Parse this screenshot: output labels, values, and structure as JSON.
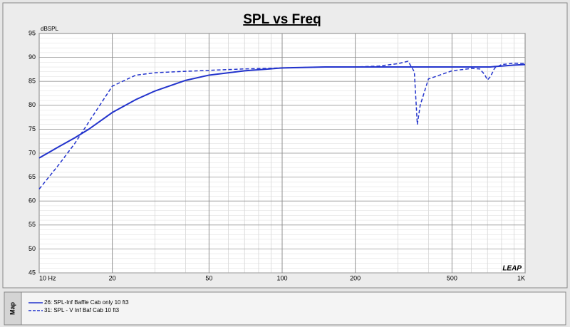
{
  "chart_data": {
    "type": "line",
    "title": "SPL vs Freq",
    "y_label": "dBSPL",
    "logo": "LEAP",
    "panel_label": "Map",
    "x_log": true,
    "grid": true,
    "minor_grid": true,
    "xlim": [
      10,
      1000
    ],
    "ylim": [
      45,
      95
    ],
    "xticks": [
      {
        "value": 10,
        "label": "10 Hz"
      },
      20,
      50,
      100,
      200,
      500,
      {
        "value": 1000,
        "label": "1K"
      }
    ],
    "yticks": [
      45,
      50,
      55,
      60,
      65,
      70,
      75,
      80,
      85,
      90,
      95
    ],
    "x": [
      10,
      12,
      14,
      16,
      20,
      25,
      30,
      40,
      50,
      70,
      100,
      150,
      200,
      250,
      300,
      330,
      350,
      360,
      370,
      400,
      500,
      600,
      650,
      680,
      700,
      720,
      750,
      800,
      900,
      1000
    ],
    "series": [
      {
        "name": "26: SPL-Inf Baffle Cab only 10 ft3",
        "color": "#2233cc",
        "dash": false,
        "values": [
          69,
          71.3,
          73.2,
          75,
          78.5,
          81.2,
          83,
          85.2,
          86.3,
          87.2,
          87.8,
          88,
          88,
          88,
          88,
          88,
          88,
          88,
          88,
          88,
          88,
          88,
          88,
          88,
          88,
          88,
          88.1,
          88.2,
          88.4,
          88.5
        ]
      },
      {
        "name": "31: SPL - V Inf Baf Cab 10 ft3",
        "color": "#2233cc",
        "dash": true,
        "values": [
          62.5,
          67.5,
          72,
          76.5,
          84,
          86.3,
          86.8,
          87.1,
          87.3,
          87.6,
          87.8,
          88,
          88,
          88.2,
          88.7,
          89.2,
          87,
          76,
          80,
          85.5,
          87.2,
          87.7,
          87.6,
          86.5,
          85.3,
          86,
          87.8,
          88.5,
          88.8,
          88.7
        ]
      }
    ]
  }
}
